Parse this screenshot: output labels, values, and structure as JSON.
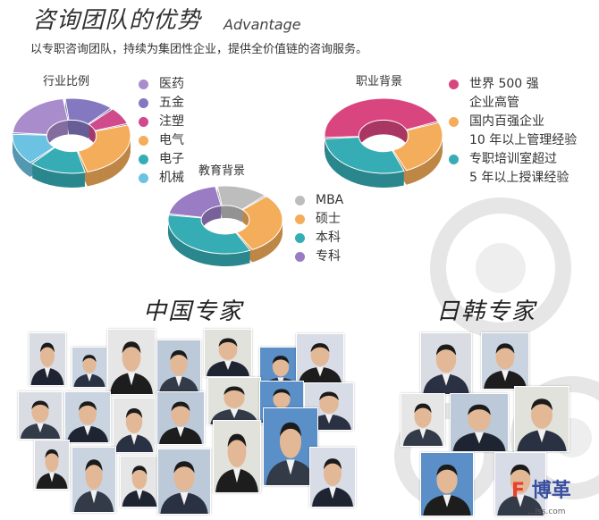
{
  "header": {
    "title": "咨询团队的优势",
    "title_en": "Advantage",
    "subtitle": "以专职咨询团队，持续为集团性企业，提供全价值链的咨询服务。"
  },
  "charts": {
    "industry": {
      "label": "行业比例",
      "items": [
        {
          "name": "医药",
          "color": "#a98ccb",
          "share": 22
        },
        {
          "name": "五金",
          "color": "#8479c0",
          "share": 14
        },
        {
          "name": "注塑",
          "color": "#d04a8c",
          "share": 8
        },
        {
          "name": "电气",
          "color": "#f4ad5a",
          "share": 26
        },
        {
          "name": "电子",
          "color": "#36adb5",
          "share": 16
        },
        {
          "name": "机械",
          "color": "#6cc2e2",
          "share": 14
        }
      ]
    },
    "career": {
      "label": "职业背景",
      "items": [
        {
          "name": "世界 500 强",
          "name2": "企业高管",
          "color": "#d9457f",
          "share": 45
        },
        {
          "name": "国内百强企业",
          "name2": "10 年以上管理经验",
          "color": "#f4ad5a",
          "share": 25
        },
        {
          "name": "专职培训室超过",
          "name2": "5 年以上授课经验",
          "color": "#36adb5",
          "share": 30
        }
      ]
    },
    "education": {
      "label": "教育背景",
      "items": [
        {
          "name": "MBA",
          "color": "#bdbdbd",
          "share": 15
        },
        {
          "name": "硕士",
          "color": "#f4ad5a",
          "share": 30
        },
        {
          "name": "本科",
          "color": "#36adb5",
          "share": 35
        },
        {
          "name": "专科",
          "color": "#9a7cc4",
          "share": 20
        }
      ]
    }
  },
  "sections": {
    "china": "中国专家",
    "japan_korea": "日韩专家"
  },
  "watermark": {
    "brand": "博革",
    "domain": "...lss.com"
  }
}
